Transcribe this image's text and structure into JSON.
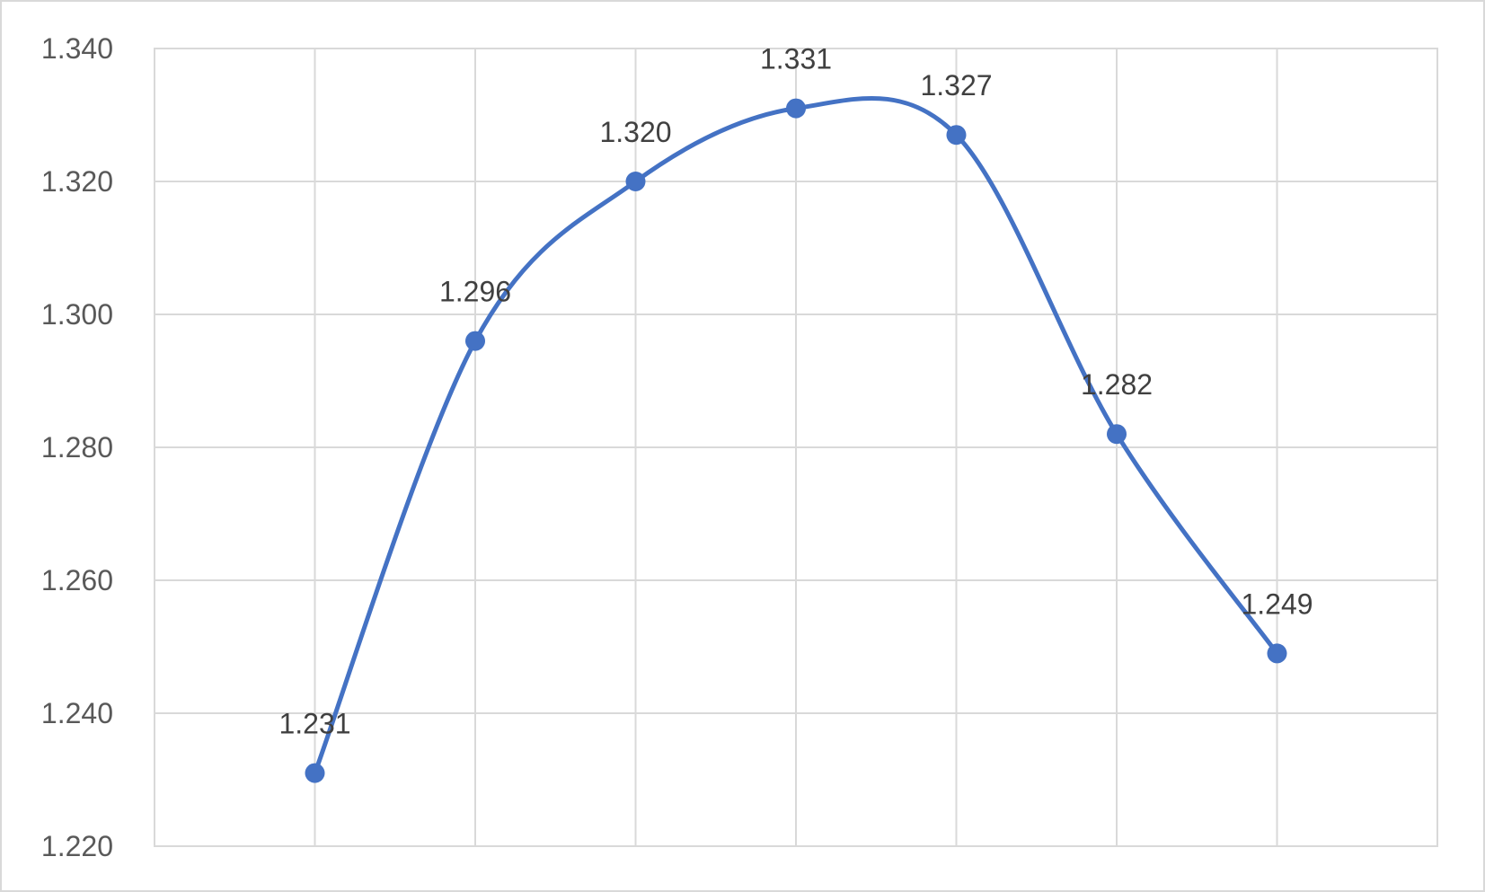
{
  "chart_data": {
    "type": "line",
    "smooth": true,
    "x": [
      1,
      2,
      3,
      4,
      5,
      6,
      7
    ],
    "series": [
      {
        "values": [
          1.231,
          1.296,
          1.32,
          1.331,
          1.327,
          1.282,
          1.249
        ]
      }
    ],
    "data_labels": [
      "1.231",
      "1.296",
      "1.320",
      "1.331",
      "1.327",
      "1.282",
      "1.249"
    ],
    "title": "",
    "xlabel": "",
    "ylabel": "",
    "ylim": [
      1.22,
      1.34
    ],
    "yticks": [
      1.22,
      1.24,
      1.26,
      1.28,
      1.3,
      1.32,
      1.34
    ],
    "ytick_labels": [
      "1.220",
      "1.240",
      "1.260",
      "1.280",
      "1.300",
      "1.320",
      "1.340"
    ],
    "x_category_count": 8,
    "grid": true,
    "legend": "none",
    "line_color": "#4472C4",
    "marker_color": "#4472C4",
    "grid_color": "#D9D9D9"
  }
}
